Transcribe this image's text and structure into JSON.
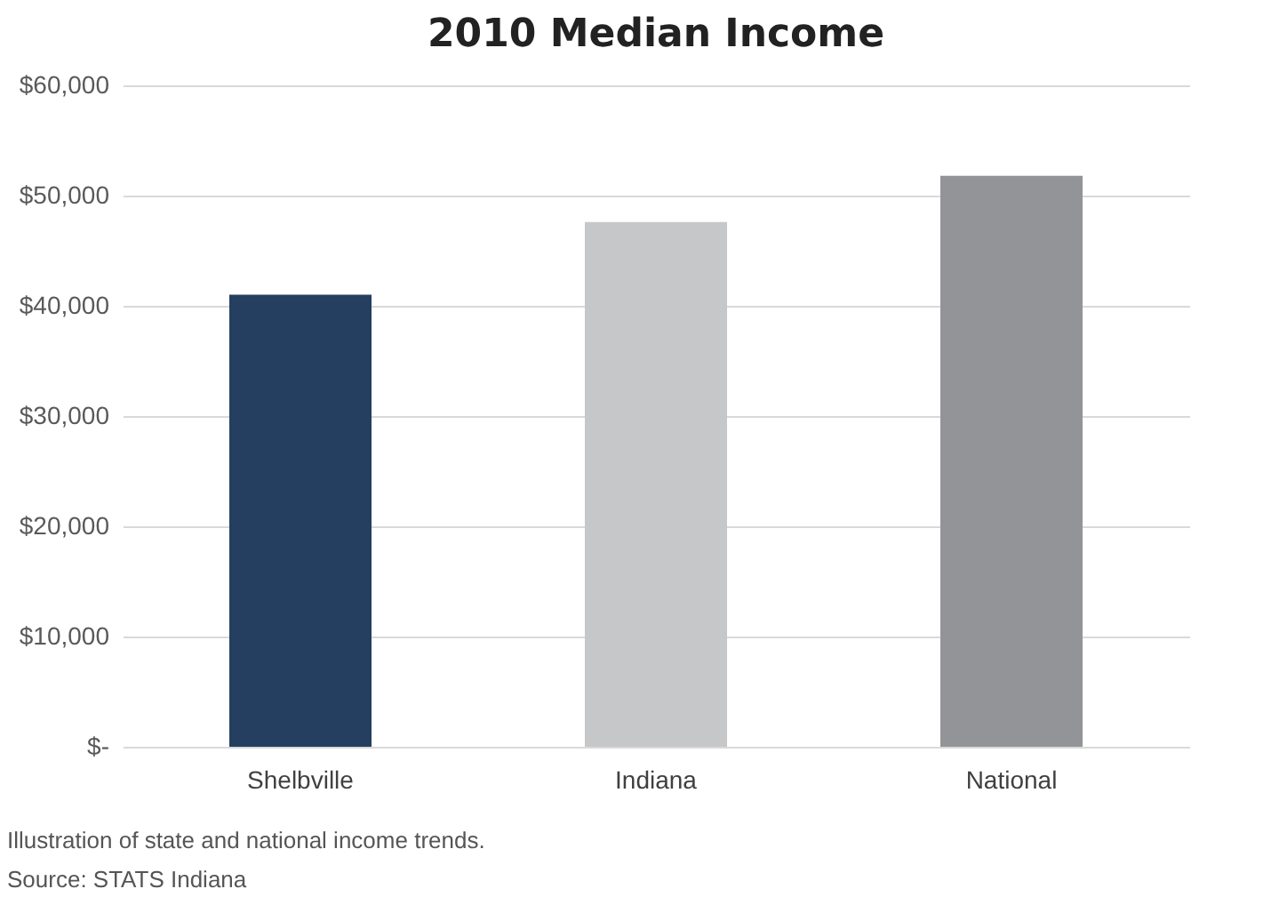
{
  "chart_data": {
    "type": "bar",
    "title": "2010 Median Income",
    "categories": [
      "Shelbville",
      "Indiana",
      "National"
    ],
    "values": [
      41000,
      47600,
      51800
    ],
    "colors": [
      "#243f5f",
      "#c6c7c9",
      "#939498"
    ],
    "ylim": [
      0,
      60000
    ],
    "yticks": [
      {
        "value": 0,
        "label": "$-"
      },
      {
        "value": 10000,
        "label": "$10,000"
      },
      {
        "value": 20000,
        "label": "$20,000"
      },
      {
        "value": 30000,
        "label": "$30,000"
      },
      {
        "value": 40000,
        "label": "$40,000"
      },
      {
        "value": 50000,
        "label": "$50,000"
      },
      {
        "value": 60000,
        "label": "$60,000"
      }
    ],
    "grid": "y",
    "annotations": [
      "Illustration of state and national income trends.",
      "Source: STATS Indiana"
    ]
  }
}
